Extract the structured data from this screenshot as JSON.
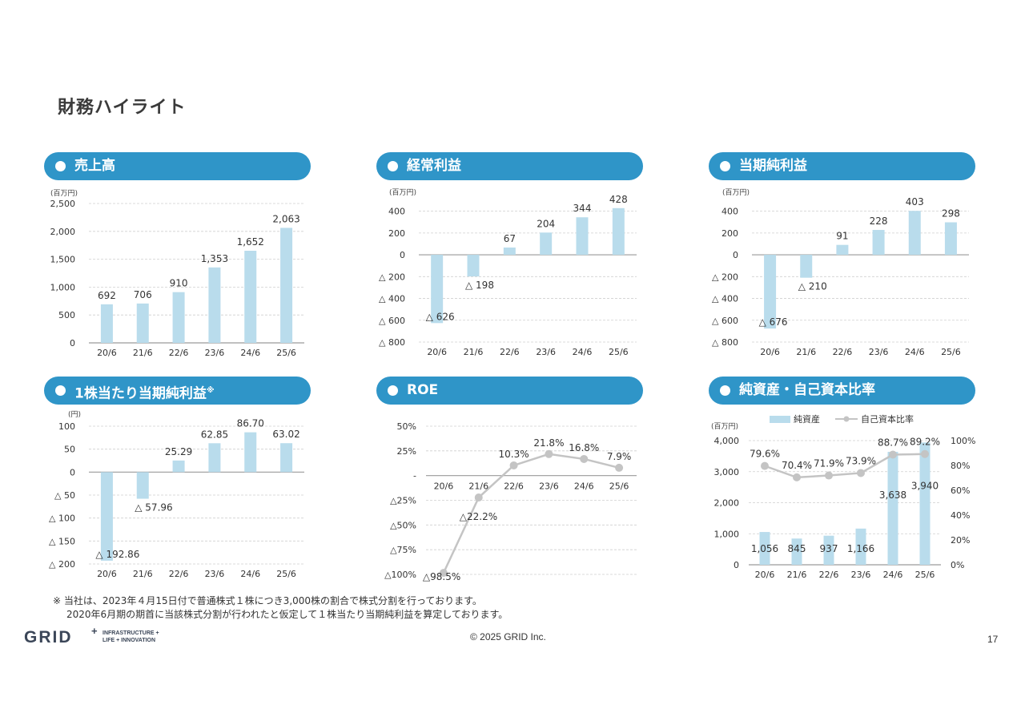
{
  "page_title": "財務ハイライト",
  "panels": {
    "sales": {
      "title": "売上高",
      "unit": "(百万円)"
    },
    "ordinary": {
      "title": "経常利益",
      "unit": "(百万円)"
    },
    "net": {
      "title": "当期純利益",
      "unit": "(百万円)"
    },
    "eps": {
      "title": "1株当たり当期純利益",
      "title_mark": "※",
      "unit": "(円)"
    },
    "roe": {
      "title": "ROE"
    },
    "equity": {
      "title": "純資産・自己資本比率",
      "unit": "(百万円)"
    }
  },
  "chart_data": [
    {
      "id": "sales",
      "type": "bar",
      "unit": "(百万円)",
      "categories": [
        "20/6",
        "21/6",
        "22/6",
        "23/6",
        "24/6",
        "25/6"
      ],
      "values": [
        692,
        706,
        910,
        1353,
        1652,
        2063
      ],
      "data_labels": [
        "692",
        "706",
        "910",
        "1,353",
        "1,652",
        "2,063"
      ],
      "ylim": [
        0,
        2500
      ],
      "yticks": [
        0,
        500,
        1000,
        1500,
        2000,
        2500
      ],
      "ytick_labels": [
        "0",
        "500",
        "1,000",
        "1,500",
        "2,000",
        "2,500"
      ],
      "grid": true,
      "bar_color": "#b9dcec"
    },
    {
      "id": "ordinary",
      "type": "bar",
      "unit": "(百万円)",
      "categories": [
        "20/6",
        "21/6",
        "22/6",
        "23/6",
        "24/6",
        "25/6"
      ],
      "values": [
        -626,
        -198,
        67,
        204,
        344,
        428
      ],
      "data_labels": [
        "△ 626",
        "△ 198",
        "67",
        "204",
        "344",
        "428"
      ],
      "ylim": [
        -800,
        500
      ],
      "yticks": [
        400,
        200,
        0,
        -200,
        -400,
        -600,
        -800
      ],
      "ytick_labels": [
        "400",
        "200",
        "0",
        "△ 200",
        "△ 400",
        "△ 600",
        "△ 800"
      ],
      "grid": true,
      "bar_color": "#b9dcec"
    },
    {
      "id": "net",
      "type": "bar",
      "unit": "(百万円)",
      "categories": [
        "20/6",
        "21/6",
        "22/6",
        "23/6",
        "24/6",
        "25/6"
      ],
      "values": [
        -676,
        -210,
        91,
        228,
        403,
        298
      ],
      "data_labels": [
        "△ 676",
        "△ 210",
        "91",
        "228",
        "403",
        "298"
      ],
      "ylim": [
        -800,
        500
      ],
      "yticks": [
        400,
        200,
        0,
        -200,
        -400,
        -600,
        -800
      ],
      "ytick_labels": [
        "400",
        "200",
        "0",
        "△ 200",
        "△ 400",
        "△ 600",
        "△ 800"
      ],
      "grid": true,
      "bar_color": "#b9dcec"
    },
    {
      "id": "eps",
      "type": "bar",
      "unit": "(円)",
      "categories": [
        "20/6",
        "21/6",
        "22/6",
        "23/6",
        "24/6",
        "25/6"
      ],
      "values": [
        -192.86,
        -57.96,
        25.29,
        62.85,
        86.7,
        63.02
      ],
      "data_labels": [
        "△ 192.86",
        "△ 57.96",
        "25.29",
        "62.85",
        "86.70",
        "63.02"
      ],
      "ylim": [
        -200,
        100
      ],
      "yticks": [
        100,
        50,
        0,
        -50,
        -100,
        -150,
        -200
      ],
      "ytick_labels": [
        "100",
        "50",
        "0",
        "△ 50",
        "△ 100",
        "△ 150",
        "△ 200"
      ],
      "grid": true,
      "bar_color": "#b9dcec"
    },
    {
      "id": "roe",
      "type": "line",
      "categories": [
        "20/6",
        "21/6",
        "22/6",
        "23/6",
        "24/6",
        "25/6"
      ],
      "values": [
        -98.5,
        -22.2,
        10.3,
        21.8,
        16.8,
        7.9
      ],
      "data_labels": [
        "△98.5%",
        "△22.2%",
        "10.3%",
        "21.8%",
        "16.8%",
        "7.9%"
      ],
      "ylim": [
        -100,
        50
      ],
      "yticks": [
        50,
        25,
        0,
        -25,
        -50,
        -75,
        -100
      ],
      "ytick_labels": [
        "50%",
        "25%",
        "-",
        "△25%",
        "△50%",
        "△75%",
        "△100%"
      ],
      "grid": true,
      "line_color": "#c4c4c4"
    },
    {
      "id": "equity",
      "type": "bar+line",
      "unit": "(百万円)",
      "categories": [
        "20/6",
        "21/6",
        "22/6",
        "23/6",
        "24/6",
        "25/6"
      ],
      "series": [
        {
          "name": "純資産",
          "type": "bar",
          "values": [
            1056,
            845,
            937,
            1166,
            3638,
            3940
          ],
          "data_labels": [
            "1,056",
            "845",
            "937",
            "1,166",
            "3,638",
            "3,940"
          ],
          "color": "#b9dcec"
        },
        {
          "name": "自己資本比率",
          "type": "line",
          "axis": "right",
          "values": [
            79.6,
            70.4,
            71.9,
            73.9,
            88.7,
            89.2
          ],
          "data_labels": [
            "79.6%",
            "70.4%",
            "71.9%",
            "73.9%",
            "88.7%",
            "89.2%"
          ],
          "color": "#c4c4c4"
        }
      ],
      "ylim": [
        0,
        4000
      ],
      "yticks": [
        0,
        1000,
        2000,
        3000,
        4000
      ],
      "ytick_labels": [
        "0",
        "1,000",
        "2,000",
        "3,000",
        "4,000"
      ],
      "y2lim": [
        0,
        100
      ],
      "y2ticks": [
        0,
        20,
        40,
        60,
        80,
        100
      ],
      "y2tick_labels": [
        "0%",
        "20%",
        "40%",
        "60%",
        "80%",
        "100%"
      ],
      "legend_position": "top",
      "grid": true
    }
  ],
  "footnote": {
    "line1": "※ 当社は、2023年４月15日付で普通株式１株につき3,000株の割合で株式分割を行っております。",
    "line2": "2020年6月期の期首に当該株式分割が行われたと仮定して１株当たり当期純利益を算定しております。"
  },
  "footer": {
    "logo_main": "GRID",
    "logo_plus": "+",
    "logo_sub1": "INFRASTRUCTURE +",
    "logo_sub2": "LIFE + INNOVATION",
    "copyright": "© 2025 GRID Inc.",
    "page_number": "17"
  }
}
